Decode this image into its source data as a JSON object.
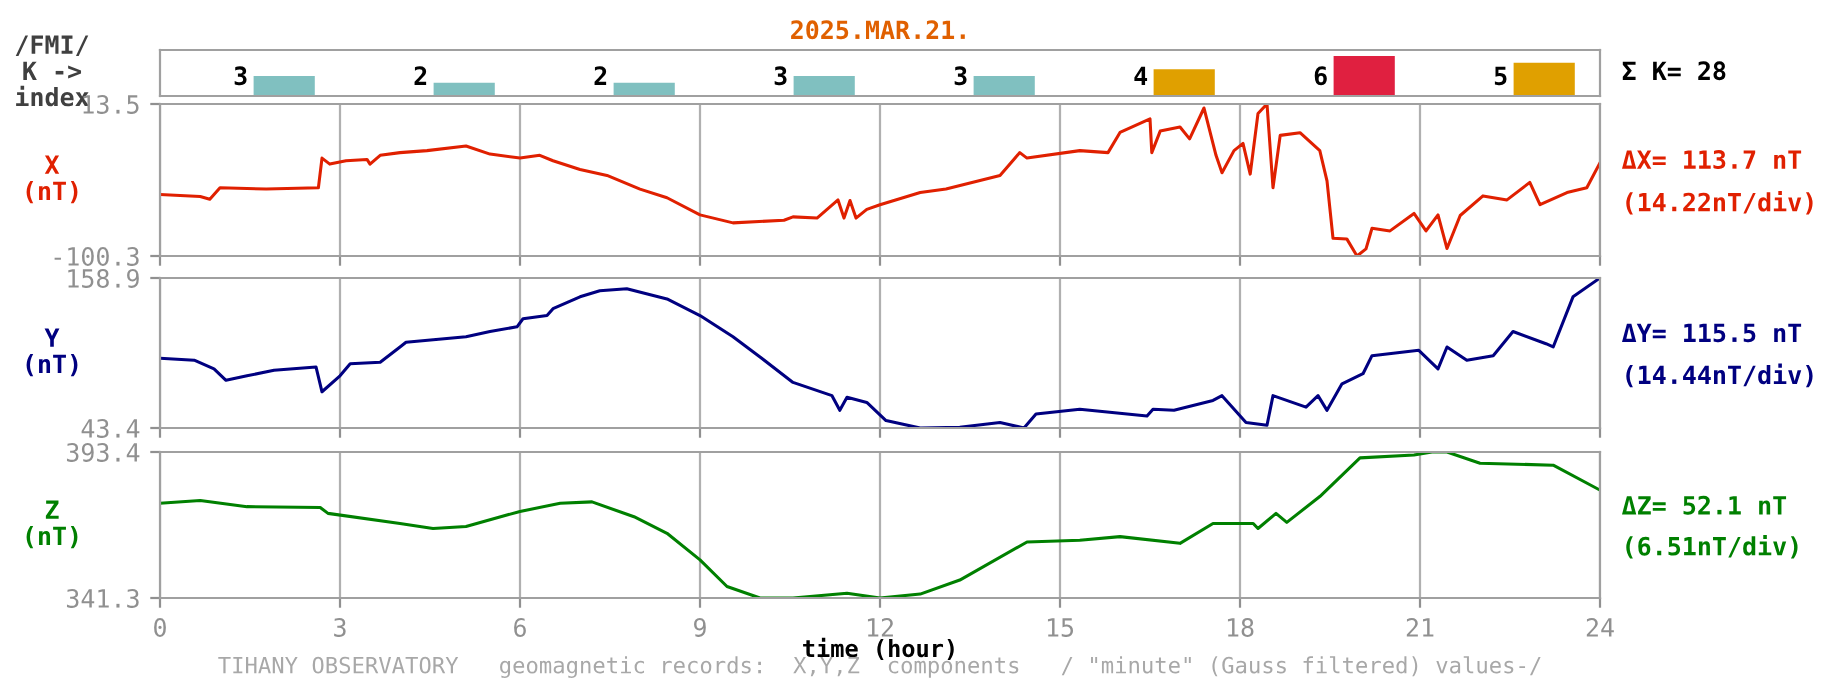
{
  "chart_data": [
    {
      "type": "bar",
      "title": "2025.MAR.21.",
      "ylabel": "/FMI/\nK ->\nindex",
      "categories": [
        null,
        null,
        null,
        null,
        null,
        null,
        null,
        null
      ],
      "values": [
        3,
        2,
        2,
        3,
        3,
        4,
        6,
        5
      ],
      "colors": [
        "#80c0c0",
        "#80c0c0",
        "#80c0c0",
        "#80c0c0",
        "#80c0c0",
        "#e0a000",
        "#e02040",
        "#e0a000"
      ],
      "data_labels": true,
      "annotations": [
        "Σ K= 28"
      ],
      "tick_labels": false
    },
    {
      "type": "line",
      "ylabel": "X\n(nT)",
      "xlim": [
        0,
        24
      ],
      "xticks": [
        0,
        3,
        6,
        9,
        12,
        15,
        18,
        21,
        24
      ],
      "ylim": [
        -100.3,
        13.5
      ],
      "yticks": [
        -100.3,
        13.5
      ],
      "grid": "x",
      "tick_labels": "y",
      "series": [
        {
          "color": "#e02000",
          "x": [
            0,
            0.67,
            0.83,
            1.0,
            1.77,
            2.64,
            2.7,
            2.83,
            3.1,
            3.45,
            3.5,
            3.67,
            4.0,
            4.45,
            5.1,
            5.5,
            6.0,
            6.33,
            6.55,
            7.0,
            7.45,
            8.0,
            8.45,
            9.0,
            9.55,
            10.4,
            10.55,
            10.95,
            11.3,
            11.4,
            11.5,
            11.6,
            11.78,
            12.0,
            12.67,
            13.1,
            14.0,
            14.33,
            14.45,
            15.33,
            15.8,
            16.0,
            16.5,
            16.53,
            16.67,
            17.0,
            17.16,
            17.4,
            17.6,
            17.7,
            17.9,
            18.05,
            18.17,
            18.3,
            18.45,
            18.55,
            18.67,
            19.0,
            19.33,
            19.45,
            19.55,
            19.78,
            19.95,
            20.1,
            20.2,
            20.5,
            20.9,
            21.1,
            21.3,
            21.45,
            21.67,
            22.05,
            22.45,
            22.83,
            23.0,
            23.45,
            23.78,
            24.0
          ],
          "values": [
            -54.3,
            -55.8,
            -57.8,
            -49.2,
            -50.2,
            -49.2,
            -27,
            -31.5,
            -29,
            -28,
            -31.5,
            -24.9,
            -22.9,
            -21.4,
            -17.9,
            -24,
            -27,
            -24.9,
            -29,
            -35.5,
            -40,
            -50.2,
            -56.7,
            -69.5,
            -75.5,
            -73.5,
            -71,
            -71.9,
            -58.3,
            -71.9,
            -58.8,
            -71.9,
            -65.4,
            -61.9,
            -52.8,
            -50.2,
            -40,
            -22.9,
            -27,
            -21.4,
            -22.9,
            -7.8,
            2.4,
            -22.9,
            -6.8,
            -3.7,
            -12.6,
            10.5,
            -24.9,
            -38,
            -21.4,
            -16,
            -39,
            6.4,
            13.5,
            -49.2,
            -10,
            -8,
            -21.4,
            -44,
            -87,
            -87.5,
            -100.3,
            -95,
            -79.5,
            -81.5,
            -68.4,
            -81.5,
            -69.5,
            -94.7,
            -70,
            -55.3,
            -58.3,
            -45.2,
            -61.9,
            -52.8,
            -49.2,
            -30.5
          ]
        }
      ],
      "annotations": [
        "ΔX= 113.7 nT",
        "(14.22nT/div)"
      ]
    },
    {
      "type": "line",
      "ylabel": "Y\n(nT)",
      "xlim": [
        0,
        24
      ],
      "xticks": [
        0,
        3,
        6,
        9,
        12,
        15,
        18,
        21,
        24
      ],
      "ylim": [
        43.4,
        158.9
      ],
      "yticks": [
        43.4,
        158.9
      ],
      "grid": "x",
      "tick_labels": "y",
      "series": [
        {
          "color": "#000080",
          "x": [
            0,
            0.57,
            0.9,
            1.1,
            1.45,
            1.9,
            2.6,
            2.7,
            3.0,
            3.17,
            3.67,
            4.0,
            4.1,
            5.1,
            5.5,
            5.95,
            6.05,
            6.45,
            6.55,
            7.0,
            7.33,
            7.78,
            8.45,
            9.0,
            9.55,
            10.0,
            10.55,
            11.2,
            11.33,
            11.45,
            11.78,
            12.1,
            12.67,
            13.33,
            14.0,
            14.4,
            14.6,
            15.33,
            16.45,
            16.55,
            16.9,
            17.55,
            17.7,
            18.1,
            18.45,
            18.55,
            19.1,
            19.3,
            19.45,
            19.7,
            20.05,
            20.2,
            20.98,
            21.3,
            21.45,
            21.78,
            22.22,
            22.55,
            23.1,
            23.22,
            23.55,
            24.0
          ],
          "values": [
            97.1,
            95.6,
            88.9,
            80.1,
            83.6,
            87.8,
            90.4,
            71.3,
            83.6,
            92.9,
            94,
            105.8,
            109.4,
            113.6,
            117.7,
            121.3,
            127.5,
            130,
            135.3,
            144.4,
            149.1,
            150.6,
            142.8,
            130,
            113.6,
            98.1,
            78.5,
            68.3,
            57,
            67,
            63.1,
            49.1,
            43.4,
            44,
            47.6,
            43.4,
            54.2,
            57.9,
            52.7,
            57.9,
            57,
            64.6,
            68.3,
            47.6,
            45.5,
            68.3,
            59.5,
            68.3,
            57,
            77.4,
            85.2,
            99.1,
            103.2,
            88.9,
            105.8,
            95.5,
            99.1,
            117.7,
            108.3,
            105.8,
            144.4,
            158.9
          ]
        }
      ],
      "annotations": [
        "ΔY= 115.5 nT",
        "(14.44nT/div)"
      ]
    },
    {
      "type": "line",
      "ylabel": "Z\n(nT)",
      "xlabel": "time (hour)",
      "xlim": [
        0,
        24
      ],
      "xticks": [
        0,
        3,
        6,
        9,
        12,
        15,
        18,
        21,
        24
      ],
      "ylim": [
        341.3,
        393.4
      ],
      "yticks": [
        341.3,
        393.4
      ],
      "grid": "x",
      "series": [
        {
          "color": "#008000",
          "x": [
            0,
            0.67,
            1.45,
            2.67,
            2.8,
            4.0,
            4.55,
            5.1,
            6.0,
            6.67,
            7.2,
            7.9,
            8.45,
            9.0,
            9.45,
            10.0,
            10.55,
            11.45,
            12.0,
            12.67,
            13.33,
            14.45,
            15.33,
            16.0,
            17.0,
            17.55,
            18.22,
            18.3,
            18.6,
            18.78,
            19.33,
            20.0,
            20.9,
            21.2,
            21.45,
            22.0,
            23.22,
            24.0
          ],
          "values": [
            375.1,
            376.1,
            373.9,
            373.6,
            371.5,
            367.9,
            366.1,
            366.8,
            372.2,
            375.1,
            375.6,
            370.3,
            364.4,
            354.9,
            345.4,
            341.3,
            341.3,
            343,
            341.3,
            342.7,
            347.7,
            361.3,
            361.9,
            363.2,
            360.8,
            367.9,
            367.9,
            366.1,
            371.5,
            368.3,
            377.5,
            391.3,
            392.3,
            393.4,
            393.4,
            389.4,
            388.7,
            379.8
          ]
        }
      ],
      "annotations": [
        "ΔZ= 52.1 nT",
        "(6.51nT/div)",
        "TIHANY OBSERVATORY   geomagnetic records:  X,Y,Z  components   / \"minute\" (Gauss filtered) values-/"
      ]
    }
  ]
}
